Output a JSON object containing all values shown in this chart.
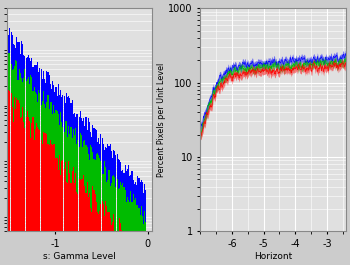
{
  "fig_width": 3.5,
  "fig_height": 2.65,
  "dpi": 100,
  "bg_color": "#cccccc",
  "plot_bg_color": "#e0e0e0",
  "grid_color": "#ffffff",
  "left_xlabel": "s: Gamma Level",
  "right_xlabel": "Horizont",
  "right_ylabel": "Percent Pixels per Unit Level",
  "left_xlim": [
    -1.52,
    0.05
  ],
  "left_xticks": [
    -1,
    0
  ],
  "left_ylim": [
    0.5,
    5000
  ],
  "right_xlim": [
    -7.0,
    -2.4
  ],
  "right_xticks": [
    -6,
    -5,
    -4,
    -3
  ],
  "right_ylim": [
    1,
    1000
  ],
  "right_yticks": [
    1,
    10,
    100,
    1000
  ],
  "colors": {
    "blue": "#0000ff",
    "green": "#00bb00",
    "red": "#ff0000"
  },
  "seed": 42
}
